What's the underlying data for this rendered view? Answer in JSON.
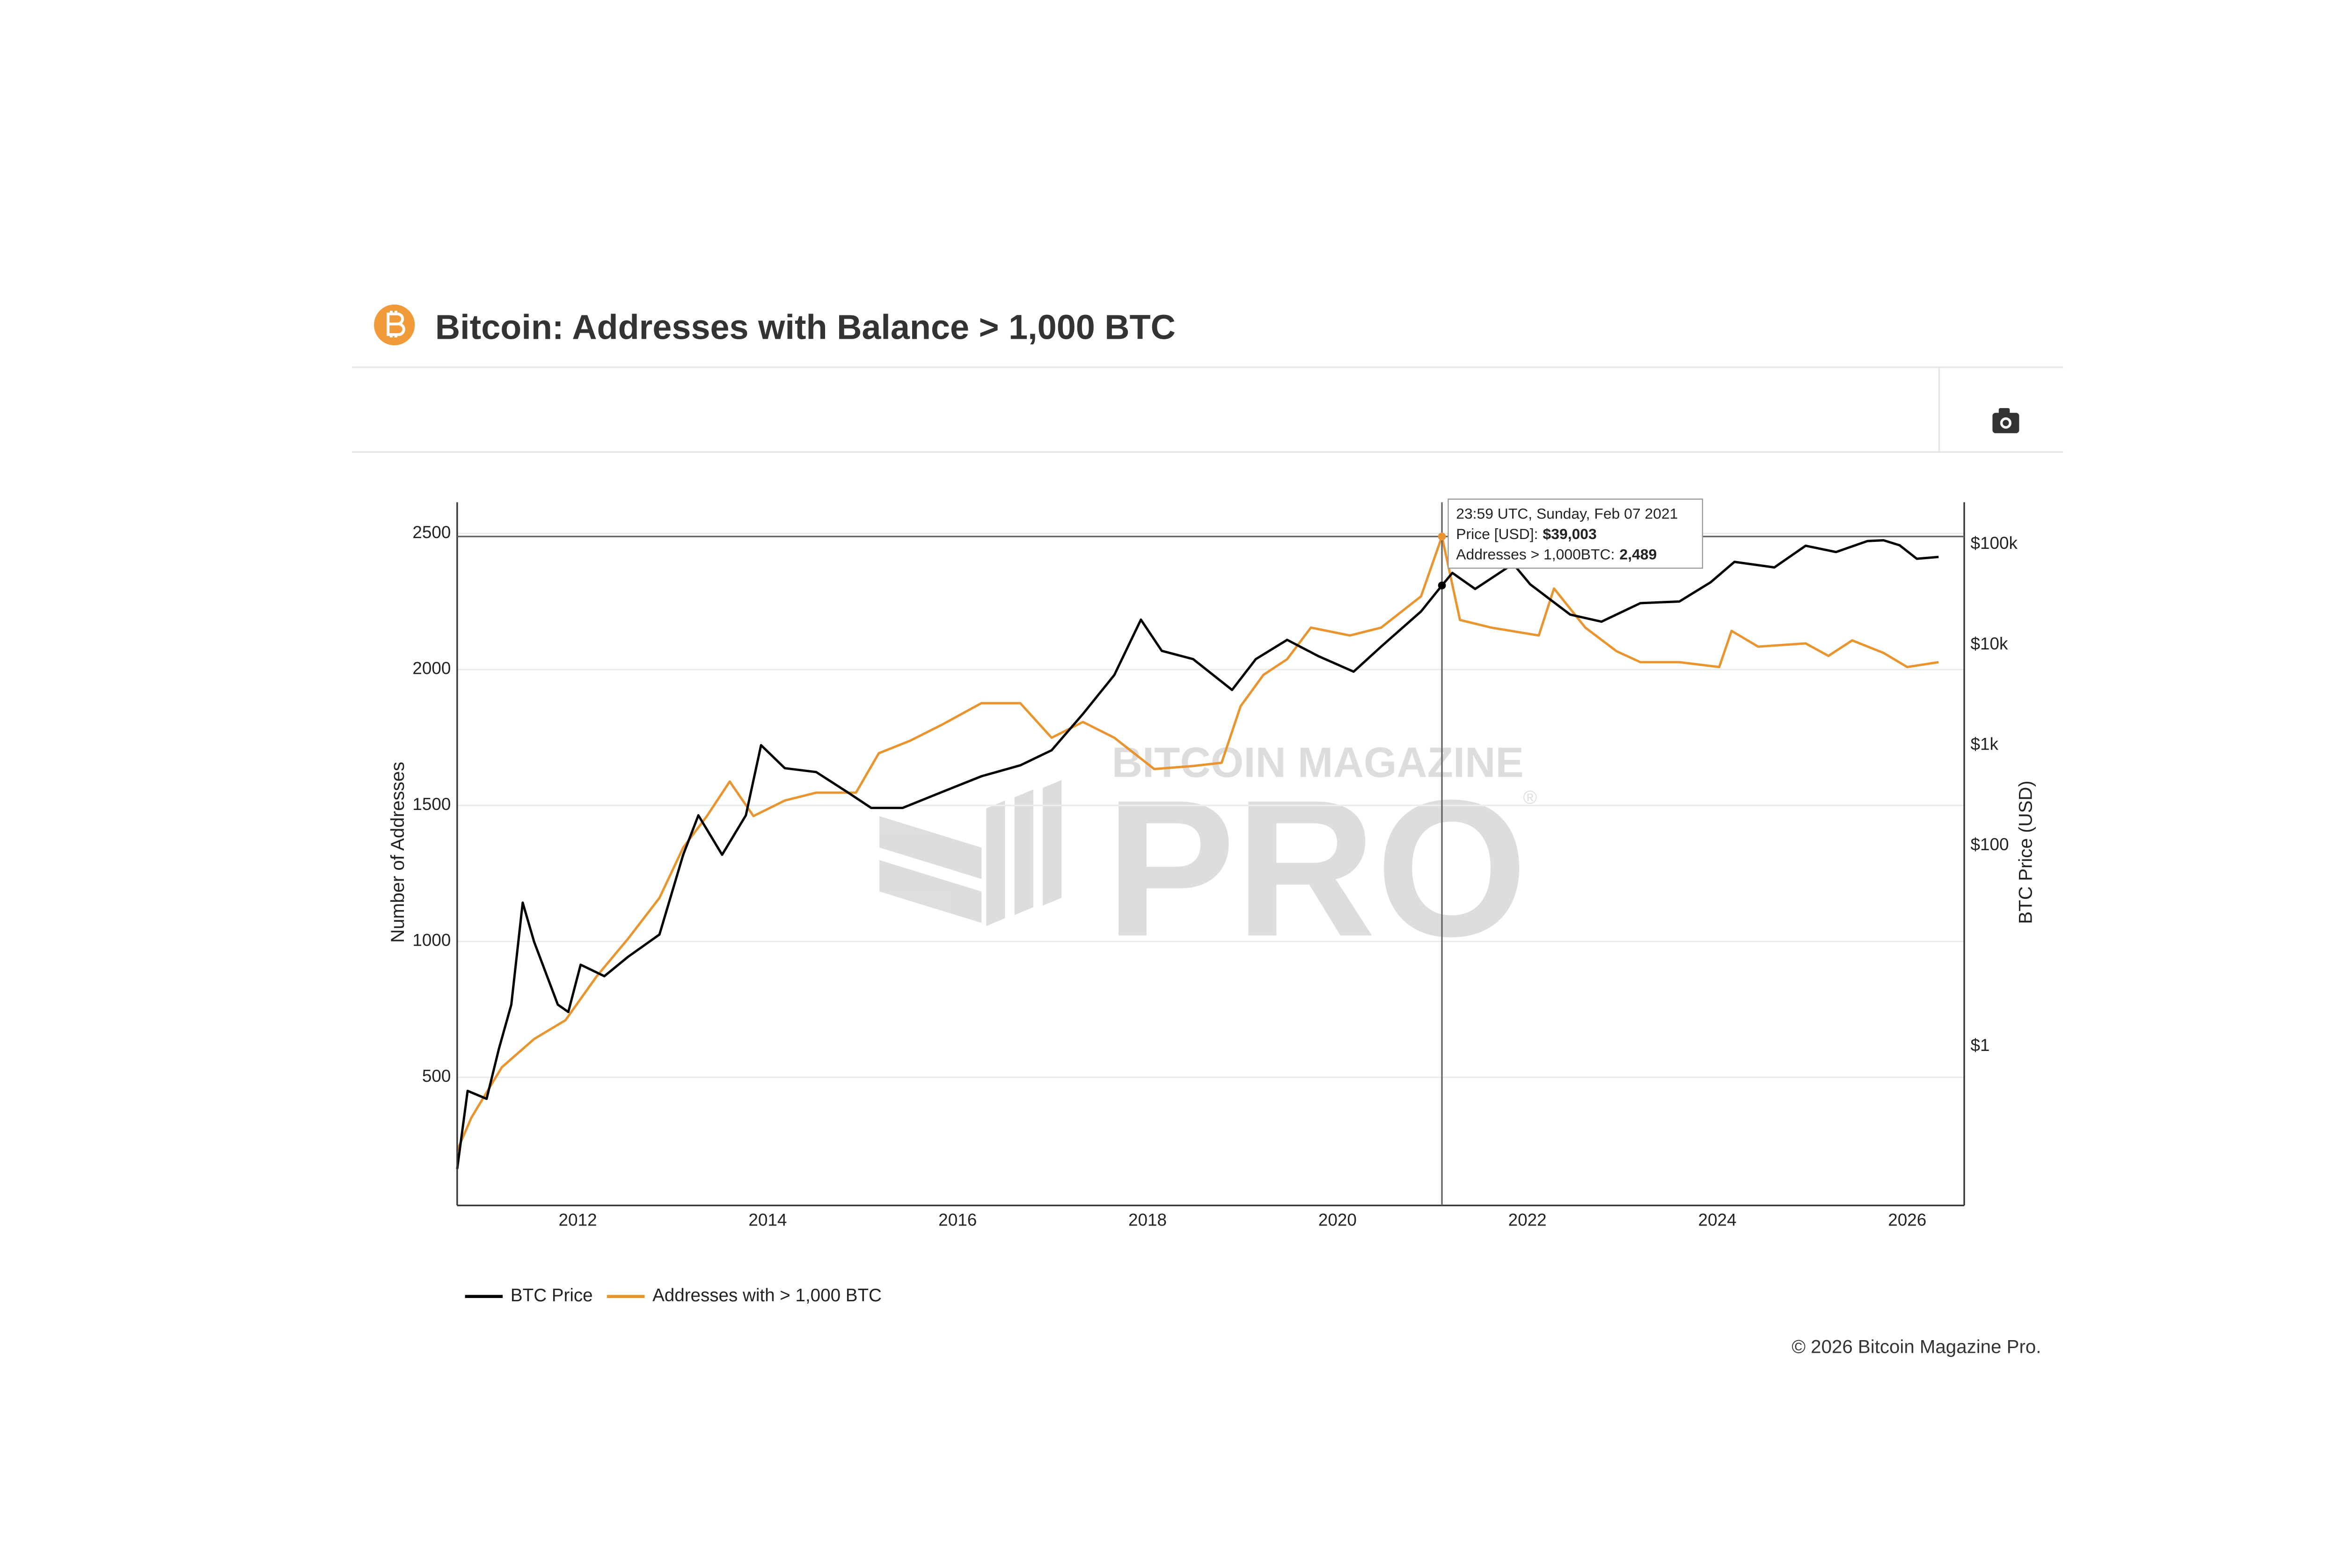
{
  "chart_data": {
    "type": "line",
    "title": "Bitcoin: Addresses with Balance > 1,000 BTC",
    "y_label": "Number of Addresses",
    "y2_label": "BTC Price (USD)",
    "xlim": [
      2010.73,
      2026.6
    ],
    "xticks": [
      2012,
      2014,
      2016,
      2018,
      2020,
      2022,
      2024,
      2026
    ],
    "ylim": [
      29,
      2615
    ],
    "yticks": [
      500,
      1000,
      1500,
      2000,
      2500
    ],
    "y2lim": [
      0.026,
      263000
    ],
    "y2log": true,
    "y2ticks": [
      {
        "value": 1,
        "label": "$1"
      },
      {
        "value": 100,
        "label": "$100"
      },
      {
        "value": 1000,
        "label": "$1k"
      },
      {
        "value": 10000,
        "label": "$10k"
      },
      {
        "value": 100000,
        "label": "$100k"
      }
    ],
    "grid": true,
    "series": [
      {
        "name": "BTC Price",
        "color": "#000000",
        "axis": "y2",
        "x": [
          2010.73,
          2010.84,
          2011.04,
          2011.17,
          2011.3,
          2011.42,
          2011.54,
          2011.79,
          2011.9,
          2012.03,
          2012.28,
          2012.53,
          2012.86,
          2013.11,
          2013.27,
          2013.52,
          2013.77,
          2013.93,
          2014.18,
          2014.51,
          2014.84,
          2015.09,
          2015.42,
          2015.83,
          2016.25,
          2016.66,
          2016.99,
          2017.32,
          2017.65,
          2017.93,
          2018.15,
          2018.48,
          2018.89,
          2019.14,
          2019.47,
          2019.8,
          2020.17,
          2020.46,
          2020.88,
          2021.1,
          2021.21,
          2021.45,
          2021.85,
          2022.03,
          2022.45,
          2022.78,
          2023.19,
          2023.6,
          2023.93,
          2024.18,
          2024.6,
          2024.93,
          2025.25,
          2025.58,
          2025.75,
          2025.92,
          2026.1,
          2026.33
        ],
        "values": [
          0.06,
          0.36,
          0.3,
          0.95,
          2.6,
          27,
          11,
          2.6,
          2.2,
          6.5,
          5,
          7.8,
          13,
          81,
          200,
          81,
          200,
          1000,
          590,
          540,
          340,
          237,
          237,
          340,
          490,
          630,
          890,
          2050,
          5000,
          17800,
          8700,
          7200,
          3550,
          7200,
          11200,
          7700,
          5400,
          9600,
          21500,
          39003,
          52000,
          36000,
          64000,
          40000,
          20000,
          17000,
          26000,
          27000,
          42000,
          67000,
          59000,
          97000,
          84000,
          108000,
          110000,
          98000,
          72000,
          75000
        ]
      },
      {
        "name": "Addresses with > 1,000 BTC",
        "color": "#E8952F",
        "x": [
          2010.73,
          2010.88,
          2011.2,
          2011.54,
          2011.87,
          2012.2,
          2012.53,
          2012.86,
          2013.11,
          2013.36,
          2013.6,
          2013.85,
          2014.18,
          2014.51,
          2014.93,
          2015.17,
          2015.5,
          2015.83,
          2016.25,
          2016.66,
          2016.99,
          2017.32,
          2017.65,
          2018.07,
          2018.48,
          2018.78,
          2018.98,
          2019.22,
          2019.47,
          2019.72,
          2020.13,
          2020.46,
          2020.88,
          2021.1,
          2021.29,
          2021.62,
          2022.12,
          2022.28,
          2022.61,
          2022.94,
          2023.19,
          2023.6,
          2024.02,
          2024.15,
          2024.43,
          2024.93,
          2025.17,
          2025.42,
          2025.75,
          2026.0,
          2026.33
        ],
        "values": [
          231,
          352,
          537,
          641,
          710,
          872,
          1010,
          1160,
          1345,
          1461,
          1588,
          1461,
          1518,
          1547,
          1547,
          1692,
          1738,
          1796,
          1876,
          1876,
          1749,
          1807,
          1749,
          1634,
          1645,
          1657,
          1865,
          1980,
          2038,
          2154,
          2125,
          2154,
          2269,
          2489,
          2182,
          2154,
          2125,
          2298,
          2154,
          2067,
          2027,
          2027,
          2009,
          2142,
          2084,
          2096,
          2050,
          2107,
          2061,
          2009,
          2027
        ]
      }
    ],
    "tooltip": {
      "date": "23:59 UTC, Sunday, Feb 07 2021",
      "x": 2021.1,
      "price_label": "Price [USD]:",
      "price": 39003,
      "price_text": "$39,003",
      "addresses_label": "Addresses > 1,000BTC:",
      "addresses": 2489,
      "addresses_text": "2,489"
    },
    "legend": "bottom-left",
    "watermark": {
      "brand": "BITCOIN MAGAZINE",
      "product": "PRO",
      "mark": "®"
    },
    "copyright": "© 2026 Bitcoin Magazine Pro."
  }
}
